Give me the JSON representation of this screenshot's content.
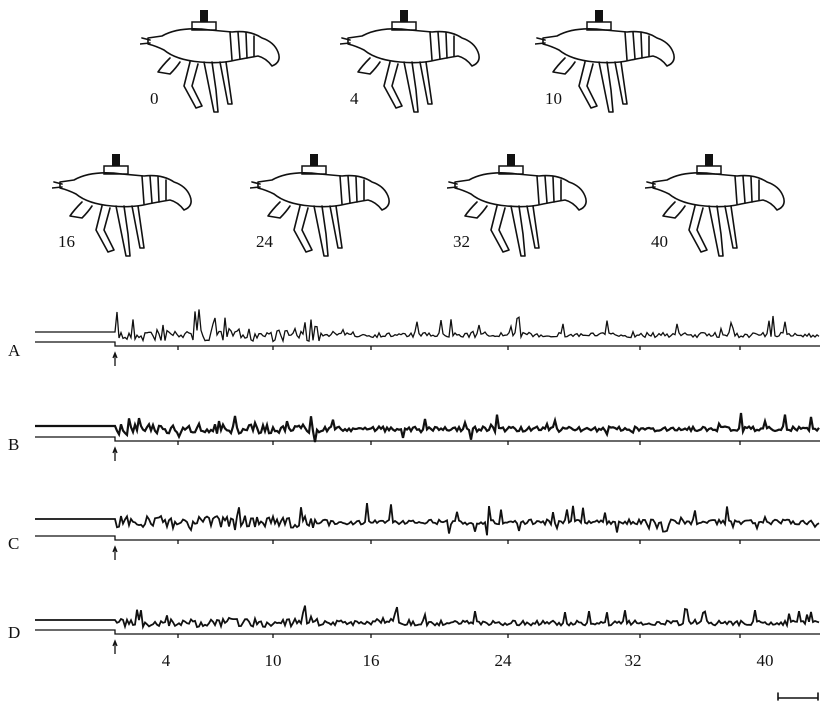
{
  "figure": {
    "stage_labels": [
      "0",
      "4",
      "10",
      "16",
      "24",
      "32",
      "40"
    ],
    "trace_labels": [
      "A",
      "B",
      "C",
      "D"
    ],
    "time_labels": [
      "4",
      "10",
      "16",
      "24",
      "32",
      "40"
    ]
  }
}
